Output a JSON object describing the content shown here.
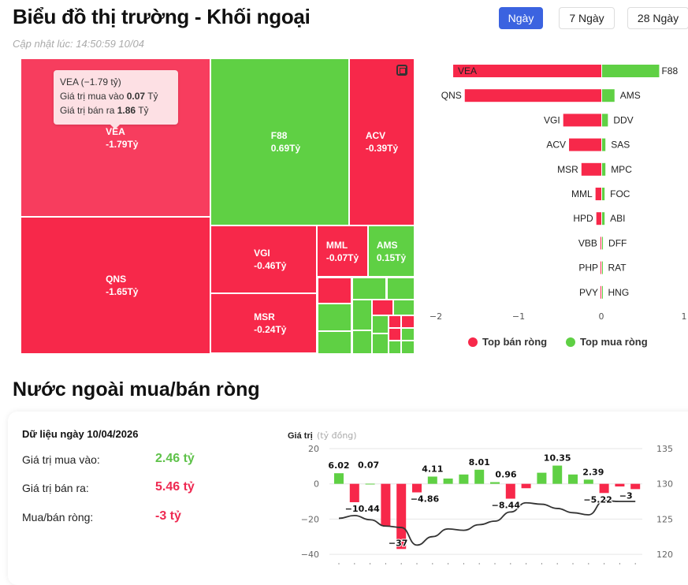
{
  "header": {
    "title": "Biểu đồ thị trường - Khối ngoại",
    "updated": "Cập nhật lúc: 14:50:59 10/04",
    "periods": [
      "Ngày",
      "7 Ngày",
      "28 Ngày"
    ],
    "active_period": "Ngày"
  },
  "colors": {
    "sell": "#f7284a",
    "sell_light": "#f73d5e",
    "buy": "#5fd044",
    "accent": "#3b63e0"
  },
  "treemap": {
    "tiles": [
      {
        "code": "VEA",
        "value": "-1.79Tỷ",
        "type": "sell"
      },
      {
        "code": "F88",
        "value": "0.69Tỷ",
        "type": "buy"
      },
      {
        "code": "ACV",
        "value": "-0.39Tỷ",
        "type": "sell"
      },
      {
        "code": "QNS",
        "value": "-1.65Tỷ",
        "type": "sell"
      },
      {
        "code": "VGI",
        "value": "-0.46Tỷ",
        "type": "sell"
      },
      {
        "code": "MSR",
        "value": "-0.24Tỷ",
        "type": "sell"
      },
      {
        "code": "MML",
        "value": "-0.07Tỷ",
        "type": "sell"
      },
      {
        "code": "AMS",
        "value": "0.15Tỷ",
        "type": "buy"
      }
    ],
    "small_tiles": [
      "sell",
      "buy",
      "buy",
      "buy",
      "buy",
      "buy",
      "buy",
      "sell",
      "buy",
      "buy",
      "sell",
      "sell",
      "sell",
      "buy",
      "buy",
      "buy",
      "buy"
    ],
    "tooltip": {
      "title": "VEA (−1.79 tỷ)",
      "buy_label": "Giá trị mua vào",
      "buy_value": "0.07",
      "sell_label": "Giá trị bán ra",
      "sell_value": "1.86",
      "unit": "Tỷ"
    }
  },
  "top_chart": {
    "type": "bar",
    "xlim": [
      -2,
      1
    ],
    "ticks": [
      "−2",
      "−1",
      "0",
      "1"
    ],
    "sell": [
      {
        "code": "VEA",
        "value": -1.79
      },
      {
        "code": "QNS",
        "value": -1.65
      },
      {
        "code": "VGI",
        "value": -0.46
      },
      {
        "code": "ACV",
        "value": -0.39
      },
      {
        "code": "MSR",
        "value": -0.24
      },
      {
        "code": "MML",
        "value": -0.07
      },
      {
        "code": "HPD",
        "value": -0.06
      },
      {
        "code": "VBB",
        "value": -0.01
      },
      {
        "code": "PHP",
        "value": 0
      },
      {
        "code": "PVY",
        "value": 0
      }
    ],
    "buy": [
      {
        "code": "F88",
        "value": 0.69
      },
      {
        "code": "AMS",
        "value": 0.15
      },
      {
        "code": "DDV",
        "value": 0.07
      },
      {
        "code": "SAS",
        "value": 0.04
      },
      {
        "code": "MPC",
        "value": 0.04
      },
      {
        "code": "FOC",
        "value": 0.03
      },
      {
        "code": "ABI",
        "value": 0.03
      },
      {
        "code": "DFF",
        "value": 0.01
      },
      {
        "code": "RAT",
        "value": 0.005
      },
      {
        "code": "HNG",
        "value": 0.005
      }
    ],
    "legend": [
      "Top bán ròng",
      "Top mua ròng"
    ]
  },
  "net": {
    "section_title": "Nước ngoài mua/bán ròng",
    "date_label": "Dữ liệu ngày 10/04/2026",
    "rows": [
      {
        "label": "Giá trị mua vào:",
        "value": "2.46 tỷ",
        "type": "buy"
      },
      {
        "label": "Giá trị bán ra:",
        "value": "5.46 tỷ",
        "type": "sell"
      },
      {
        "label": "Mua/bán ròng:",
        "value": "-3 tỷ",
        "type": "sell"
      }
    ]
  },
  "chart_data": {
    "type": "bar",
    "title": "Giá trị",
    "title_unit": "(tỷ đồng)",
    "ylim": [
      -40,
      20
    ],
    "yticks": [
      "20",
      "0",
      "−20",
      "−40"
    ],
    "y2lim": [
      120,
      135
    ],
    "y2ticks": [
      "135",
      "130",
      "125",
      "120"
    ],
    "series": [
      {
        "type": "bar",
        "values": [
          6.02,
          -10.44,
          0.07,
          -24,
          -37,
          -4.86,
          4.11,
          3,
          5.3,
          8.01,
          0.96,
          -8.44,
          -2.5,
          6.3,
          10.35,
          5.3,
          2.39,
          -5.22,
          -1.5,
          -3
        ],
        "labels": [
          "6.02",
          "−10.44",
          "0.07",
          null,
          "−37",
          "−4.86",
          "4.11",
          null,
          null,
          "8.01",
          "0.96",
          "−8.44",
          null,
          null,
          "10.35",
          null,
          "2.39",
          "−5.22",
          null,
          "−3"
        ]
      },
      {
        "type": "line",
        "axis": "right",
        "values": [
          125.1,
          125.5,
          124.9,
          124.0,
          123.8,
          121.3,
          122.5,
          123.6,
          123.4,
          124.2,
          124.7,
          126.0,
          127.3,
          127.1,
          126.5,
          125.9,
          125.6,
          127.6,
          127.5,
          127.5
        ]
      }
    ],
    "grid": true
  }
}
